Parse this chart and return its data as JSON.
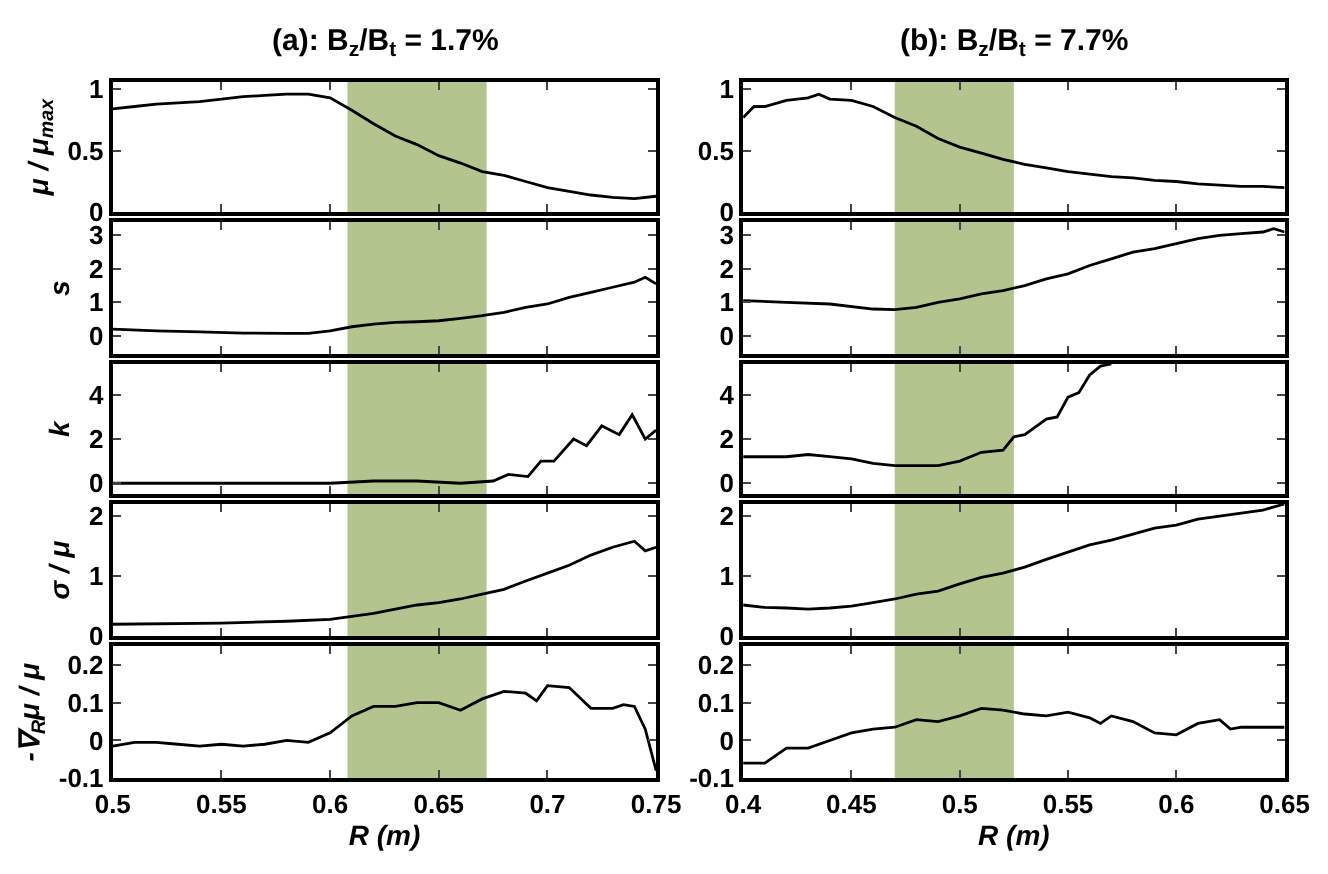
{
  "chart_data": [
    {
      "type": "line",
      "title": "(a): B$_{z}$/B$_{t}$ = 1.7%",
      "ylabel": "μ / μ$_{max}$",
      "tick_labels": "y",
      "xlim": [
        0.5,
        0.75
      ],
      "xticks": [
        0.5,
        0.55,
        0.6,
        0.65,
        0.7,
        0.75
      ],
      "ylim": [
        0,
        1.06
      ],
      "yticks": [
        0,
        0.5,
        1
      ],
      "grid": false,
      "bands": [
        {
          "axis": "x",
          "from": 0.608,
          "to": 0.672,
          "color": "#b3c48f"
        }
      ],
      "x": [
        0.5,
        0.51,
        0.52,
        0.53,
        0.54,
        0.55,
        0.56,
        0.57,
        0.58,
        0.59,
        0.6,
        0.61,
        0.62,
        0.63,
        0.64,
        0.65,
        0.66,
        0.67,
        0.68,
        0.69,
        0.7,
        0.71,
        0.72,
        0.73,
        0.74,
        0.75
      ],
      "series": [
        {
          "color": "#000000",
          "values": [
            0.84,
            0.86,
            0.88,
            0.89,
            0.9,
            0.92,
            0.94,
            0.95,
            0.96,
            0.96,
            0.93,
            0.83,
            0.72,
            0.62,
            0.55,
            0.46,
            0.4,
            0.33,
            0.3,
            0.25,
            0.2,
            0.17,
            0.14,
            0.12,
            0.11,
            0.13
          ]
        }
      ]
    },
    {
      "type": "line",
      "title": "(b): B$_{z}$/B$_{t}$ = 7.7%",
      "tick_labels": "y",
      "xlim": [
        0.4,
        0.65
      ],
      "xticks": [
        0.4,
        0.45,
        0.5,
        0.55,
        0.6,
        0.65
      ],
      "ylim": [
        0,
        1.06
      ],
      "yticks": [
        0,
        0.5,
        1
      ],
      "grid": false,
      "bands": [
        {
          "axis": "x",
          "from": 0.47,
          "to": 0.525,
          "color": "#b3c48f"
        }
      ],
      "x": [
        0.4,
        0.405,
        0.41,
        0.42,
        0.43,
        0.435,
        0.44,
        0.45,
        0.46,
        0.47,
        0.48,
        0.49,
        0.5,
        0.51,
        0.52,
        0.53,
        0.54,
        0.55,
        0.56,
        0.57,
        0.58,
        0.59,
        0.6,
        0.61,
        0.62,
        0.63,
        0.64,
        0.65
      ],
      "series": [
        {
          "color": "#000000",
          "values": [
            0.77,
            0.86,
            0.86,
            0.91,
            0.93,
            0.96,
            0.92,
            0.91,
            0.86,
            0.77,
            0.7,
            0.6,
            0.53,
            0.48,
            0.43,
            0.39,
            0.36,
            0.33,
            0.31,
            0.29,
            0.28,
            0.26,
            0.25,
            0.23,
            0.22,
            0.21,
            0.21,
            0.2
          ]
        }
      ]
    },
    {
      "type": "line",
      "ylabel": "s",
      "tick_labels": "y",
      "xlim": [
        0.5,
        0.75
      ],
      "xticks": [
        0.5,
        0.55,
        0.6,
        0.65,
        0.7,
        0.75
      ],
      "ylim": [
        -0.55,
        3.4
      ],
      "yticks": [
        0,
        1,
        2,
        3
      ],
      "grid": false,
      "bands": [
        {
          "axis": "x",
          "from": 0.608,
          "to": 0.672,
          "color": "#b3c48f"
        }
      ],
      "x": [
        0.5,
        0.52,
        0.54,
        0.56,
        0.58,
        0.59,
        0.6,
        0.61,
        0.62,
        0.63,
        0.64,
        0.65,
        0.66,
        0.67,
        0.68,
        0.69,
        0.7,
        0.71,
        0.72,
        0.73,
        0.74,
        0.745,
        0.75
      ],
      "series": [
        {
          "color": "#000000",
          "values": [
            0.2,
            0.15,
            0.12,
            0.08,
            0.07,
            0.07,
            0.15,
            0.27,
            0.35,
            0.4,
            0.42,
            0.45,
            0.52,
            0.6,
            0.7,
            0.85,
            0.95,
            1.15,
            1.3,
            1.45,
            1.6,
            1.75,
            1.55
          ]
        }
      ]
    },
    {
      "type": "line",
      "tick_labels": "y",
      "xlim": [
        0.4,
        0.65
      ],
      "xticks": [
        0.4,
        0.45,
        0.5,
        0.55,
        0.6,
        0.65
      ],
      "ylim": [
        -0.55,
        3.4
      ],
      "yticks": [
        0,
        1,
        2,
        3
      ],
      "grid": false,
      "bands": [
        {
          "axis": "x",
          "from": 0.47,
          "to": 0.525,
          "color": "#b3c48f"
        }
      ],
      "x": [
        0.4,
        0.42,
        0.44,
        0.46,
        0.47,
        0.48,
        0.49,
        0.5,
        0.51,
        0.52,
        0.53,
        0.54,
        0.55,
        0.56,
        0.57,
        0.58,
        0.59,
        0.6,
        0.61,
        0.62,
        0.63,
        0.64,
        0.645,
        0.65
      ],
      "series": [
        {
          "color": "#000000",
          "values": [
            1.05,
            1.0,
            0.95,
            0.8,
            0.78,
            0.85,
            1.0,
            1.1,
            1.25,
            1.35,
            1.5,
            1.7,
            1.85,
            2.1,
            2.3,
            2.5,
            2.6,
            2.75,
            2.9,
            3.0,
            3.05,
            3.1,
            3.2,
            3.1
          ]
        }
      ]
    },
    {
      "type": "line",
      "ylabel": "k",
      "tick_labels": "y",
      "xlim": [
        0.5,
        0.75
      ],
      "xticks": [
        0.5,
        0.55,
        0.6,
        0.65,
        0.7,
        0.75
      ],
      "ylim": [
        -0.5,
        5.4
      ],
      "yticks": [
        0,
        2,
        4
      ],
      "grid": false,
      "bands": [
        {
          "axis": "x",
          "from": 0.608,
          "to": 0.672,
          "color": "#b3c48f"
        }
      ],
      "x": [
        0.5,
        0.6,
        0.62,
        0.64,
        0.66,
        0.675,
        0.682,
        0.691,
        0.697,
        0.703,
        0.712,
        0.718,
        0.725,
        0.733,
        0.739,
        0.745,
        0.75
      ],
      "series": [
        {
          "color": "#000000",
          "values": [
            0.0,
            0.0,
            0.1,
            0.1,
            0.0,
            0.1,
            0.4,
            0.3,
            1.0,
            1.0,
            2.0,
            1.7,
            2.6,
            2.2,
            3.1,
            2.0,
            2.4
          ]
        }
      ]
    },
    {
      "type": "line",
      "tick_labels": "y",
      "xlim": [
        0.4,
        0.65
      ],
      "xticks": [
        0.4,
        0.45,
        0.5,
        0.55,
        0.6,
        0.65
      ],
      "ylim": [
        -0.5,
        5.4
      ],
      "yticks": [
        0,
        2,
        4
      ],
      "grid": false,
      "bands": [
        {
          "axis": "x",
          "from": 0.47,
          "to": 0.525,
          "color": "#b3c48f"
        }
      ],
      "x": [
        0.4,
        0.42,
        0.43,
        0.44,
        0.45,
        0.46,
        0.47,
        0.48,
        0.49,
        0.5,
        0.51,
        0.52,
        0.525,
        0.53,
        0.54,
        0.545,
        0.55,
        0.555,
        0.56,
        0.565,
        0.57
      ],
      "series": [
        {
          "color": "#000000",
          "values": [
            1.2,
            1.2,
            1.3,
            1.2,
            1.1,
            0.9,
            0.8,
            0.8,
            0.8,
            1.0,
            1.4,
            1.5,
            2.1,
            2.2,
            2.9,
            3.0,
            3.9,
            4.1,
            4.9,
            5.3,
            5.4
          ]
        }
      ]
    },
    {
      "type": "line",
      "ylabel": "σ / μ",
      "tick_labels": "y",
      "xlim": [
        0.5,
        0.75
      ],
      "xticks": [
        0.5,
        0.55,
        0.6,
        0.65,
        0.7,
        0.75
      ],
      "ylim": [
        0,
        2.2
      ],
      "yticks": [
        0,
        1,
        2
      ],
      "grid": false,
      "bands": [
        {
          "axis": "x",
          "from": 0.608,
          "to": 0.672,
          "color": "#b3c48f"
        }
      ],
      "x": [
        0.5,
        0.55,
        0.58,
        0.6,
        0.61,
        0.62,
        0.63,
        0.64,
        0.65,
        0.66,
        0.67,
        0.68,
        0.69,
        0.7,
        0.71,
        0.72,
        0.73,
        0.74,
        0.745,
        0.75
      ],
      "series": [
        {
          "color": "#000000",
          "values": [
            0.2,
            0.22,
            0.25,
            0.28,
            0.33,
            0.38,
            0.45,
            0.52,
            0.56,
            0.62,
            0.7,
            0.78,
            0.92,
            1.05,
            1.18,
            1.35,
            1.48,
            1.58,
            1.42,
            1.48
          ]
        }
      ]
    },
    {
      "type": "line",
      "tick_labels": "y",
      "xlim": [
        0.4,
        0.65
      ],
      "xticks": [
        0.4,
        0.45,
        0.5,
        0.55,
        0.6,
        0.65
      ],
      "ylim": [
        0,
        2.2
      ],
      "yticks": [
        0,
        1,
        2
      ],
      "grid": false,
      "bands": [
        {
          "axis": "x",
          "from": 0.47,
          "to": 0.525,
          "color": "#b3c48f"
        }
      ],
      "x": [
        0.4,
        0.41,
        0.42,
        0.43,
        0.44,
        0.45,
        0.46,
        0.47,
        0.48,
        0.49,
        0.5,
        0.51,
        0.52,
        0.53,
        0.54,
        0.55,
        0.56,
        0.57,
        0.58,
        0.59,
        0.6,
        0.61,
        0.62,
        0.63,
        0.64,
        0.65
      ],
      "series": [
        {
          "color": "#000000",
          "values": [
            0.52,
            0.48,
            0.47,
            0.45,
            0.47,
            0.5,
            0.56,
            0.62,
            0.7,
            0.75,
            0.87,
            0.98,
            1.05,
            1.15,
            1.28,
            1.4,
            1.52,
            1.6,
            1.7,
            1.8,
            1.85,
            1.95,
            2.0,
            2.05,
            2.1,
            2.2
          ]
        }
      ]
    },
    {
      "type": "line",
      "ylabel": "-∇$_{R}$μ / μ",
      "xlabel": "R (m)",
      "xlim": [
        0.5,
        0.75
      ],
      "xticks": [
        0.5,
        0.55,
        0.6,
        0.65,
        0.7,
        0.75
      ],
      "ylim": [
        -0.1,
        0.25
      ],
      "yticks": [
        -0.1,
        0,
        0.1,
        0.2
      ],
      "grid": false,
      "bands": [
        {
          "axis": "x",
          "from": 0.608,
          "to": 0.672,
          "color": "#b3c48f"
        }
      ],
      "x": [
        0.5,
        0.51,
        0.52,
        0.53,
        0.54,
        0.55,
        0.56,
        0.57,
        0.58,
        0.59,
        0.6,
        0.61,
        0.62,
        0.63,
        0.64,
        0.65,
        0.66,
        0.67,
        0.68,
        0.69,
        0.695,
        0.7,
        0.71,
        0.72,
        0.73,
        0.735,
        0.74,
        0.745,
        0.75
      ],
      "series": [
        {
          "color": "#000000",
          "values": [
            -0.015,
            -0.005,
            -0.005,
            -0.01,
            -0.015,
            -0.01,
            -0.015,
            -0.01,
            0.0,
            -0.005,
            0.02,
            0.065,
            0.09,
            0.09,
            0.1,
            0.1,
            0.08,
            0.11,
            0.13,
            0.125,
            0.105,
            0.145,
            0.14,
            0.085,
            0.085,
            0.095,
            0.09,
            0.03,
            -0.08
          ]
        }
      ]
    },
    {
      "type": "line",
      "xlabel": "R (m)",
      "xlim": [
        0.4,
        0.65
      ],
      "xticks": [
        0.4,
        0.45,
        0.5,
        0.55,
        0.6,
        0.65
      ],
      "ylim": [
        -0.1,
        0.25
      ],
      "yticks": [
        -0.1,
        0,
        0.1,
        0.2
      ],
      "grid": false,
      "bands": [
        {
          "axis": "x",
          "from": 0.47,
          "to": 0.525,
          "color": "#b3c48f"
        }
      ],
      "x": [
        0.4,
        0.41,
        0.42,
        0.43,
        0.44,
        0.45,
        0.46,
        0.47,
        0.48,
        0.49,
        0.5,
        0.51,
        0.52,
        0.53,
        0.54,
        0.55,
        0.56,
        0.565,
        0.57,
        0.58,
        0.59,
        0.6,
        0.61,
        0.62,
        0.625,
        0.63,
        0.65
      ],
      "series": [
        {
          "color": "#000000",
          "values": [
            -0.06,
            -0.06,
            -0.02,
            -0.02,
            0.0,
            0.02,
            0.03,
            0.035,
            0.055,
            0.05,
            0.065,
            0.085,
            0.08,
            0.07,
            0.065,
            0.075,
            0.06,
            0.045,
            0.065,
            0.05,
            0.02,
            0.015,
            0.045,
            0.055,
            0.03,
            0.035,
            0.035
          ]
        }
      ]
    }
  ]
}
